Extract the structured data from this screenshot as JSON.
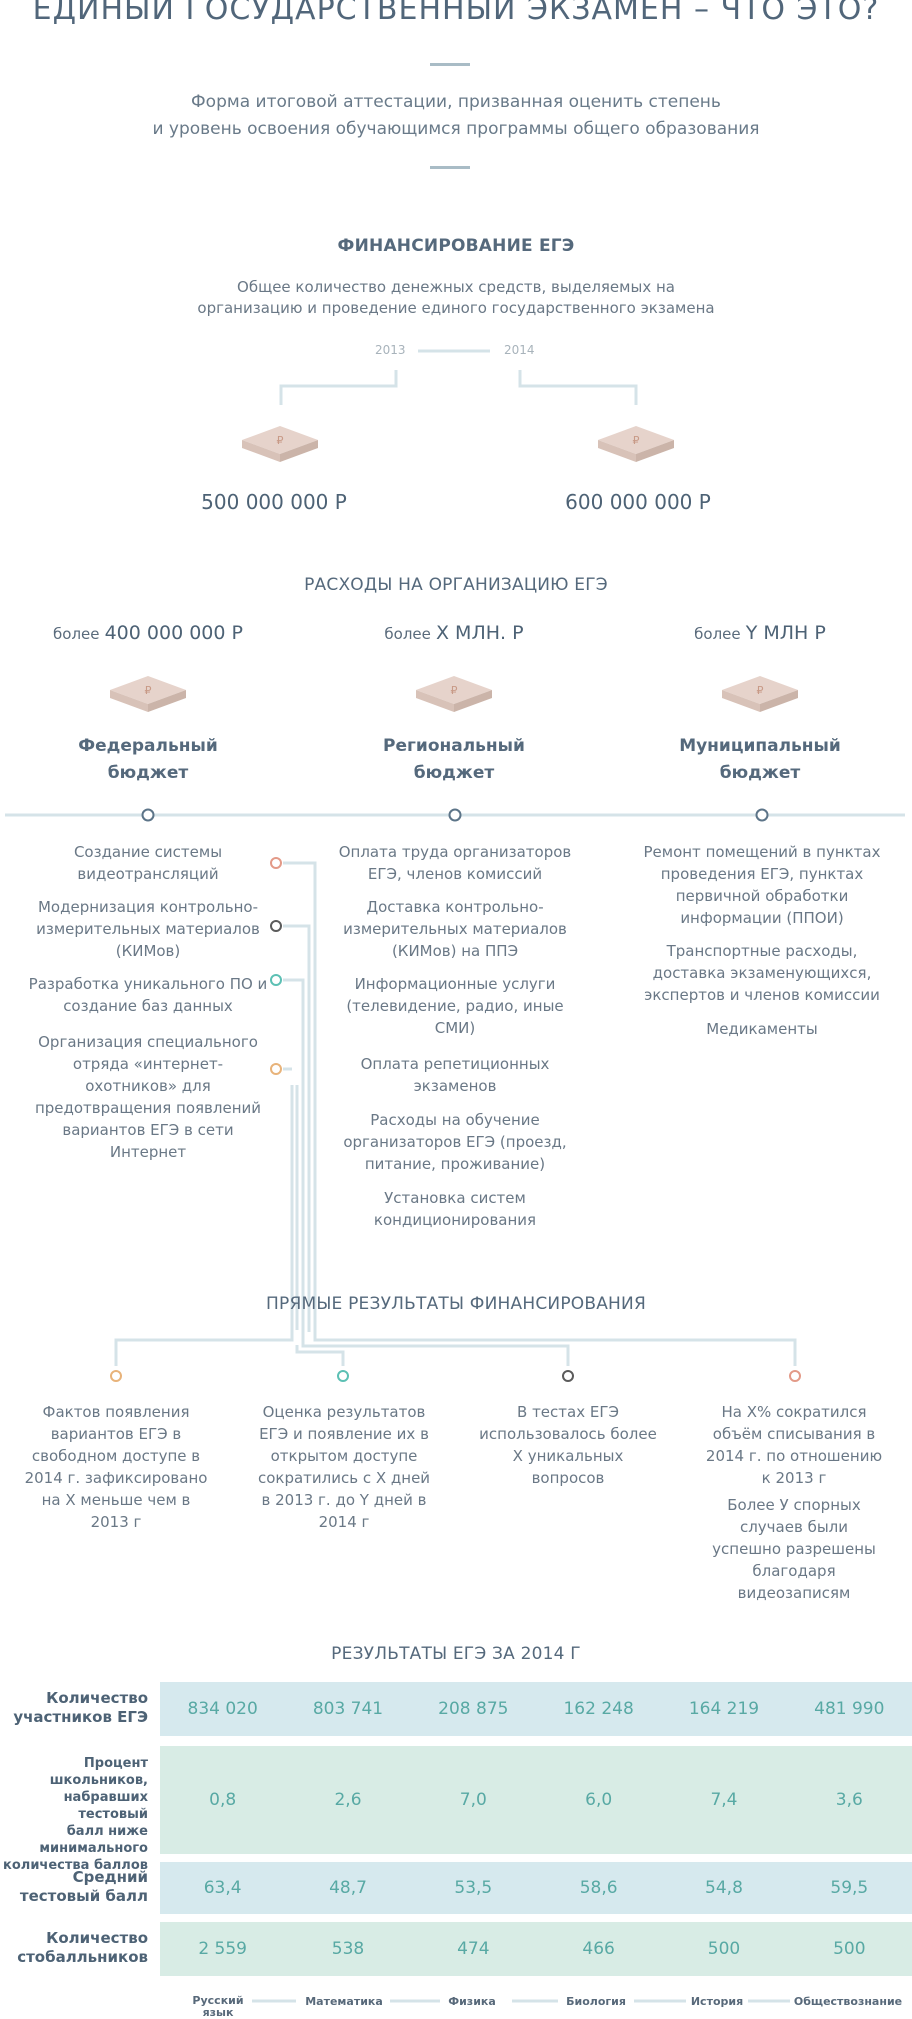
{
  "header": {
    "title": "ЕДИНЫЙ ГОСУДАРСТВЕННЫЙ ЭКЗАМЕН – ЧТО ЭТО?",
    "lead_line1": "Форма итоговой аттестации, призванная оценить степень",
    "lead_line2": "и уровень освоения обучающимся программы общего образования"
  },
  "financing": {
    "title": "ФИНАНСИРОВАНИЕ ЕГЭ",
    "desc_line1": "Общее количество денежных средств, выделяемых на",
    "desc_line2": "организацию и проведение единого государственного экзамена",
    "year1": "2013",
    "year2": "2014",
    "amount1": "500 000 000 Р",
    "amount2": "600 000 000 Р"
  },
  "expenses": {
    "title": "РАСХОДЫ НА ОРГАНИЗАЦИЮ ЕГЭ",
    "columns": [
      {
        "prefix": "более",
        "amount": "400 000 000 Р",
        "name_line1": "Федеральный",
        "name_line2": "бюджет",
        "items": [
          "Создание системы видеотрансляций",
          "Модернизация контрольно-измерительных материалов (КИМов)",
          "Разработка уникального ПО и создание баз данных",
          "Организация специального отряда «интернет-охотников» для предотвращения появлений вариантов ЕГЭ в сети Интернет"
        ]
      },
      {
        "prefix": "более",
        "amount": "X МЛН. Р",
        "name_line1": "Региональный",
        "name_line2": "бюджет",
        "items": [
          "Оплата труда организаторов ЕГЭ, членов комиссий",
          "Доставка контрольно-измерительных материалов (КИМов) на ППЭ",
          "Информационные услуги (телевидение, радио, иные СМИ)",
          "Оплата репетиционных экзаменов",
          "Расходы на обучение организаторов ЕГЭ (проезд, питание, проживание)",
          "Установка систем кондиционирования"
        ]
      },
      {
        "prefix": "более",
        "amount": "Y МЛН Р",
        "name_line1": "Муниципальный",
        "name_line2": "бюджет",
        "items": [
          "Ремонт помещений в пунктах проведения ЕГЭ, пунктах первичной обработки информации (ППОИ)",
          "Транспортные расходы, доставка экзаменующихся, экспертов и членов комиссии",
          "Медикаменты"
        ]
      }
    ]
  },
  "results": {
    "title": "ПРЯМЫЕ РЕЗУЛЬТАТЫ ФИНАНСИРОВАНИЯ",
    "items": [
      "Фактов появления вариантов ЕГЭ в свободном доступе в 2014 г. зафиксировано на X меньше чем в 2013 г",
      "Оценка результатов ЕГЭ и появление их в открытом доступе сократились с X дней в 2013 г. до Y дней в 2014 г",
      "В тестах ЕГЭ использовалось более X уникальных вопросов",
      "На X% сократился объём списывания в 2014 г. по отношению к 2013 г",
      "Более У спорных случаев были успешно разрешены благодаря видеозаписям"
    ]
  },
  "exam": {
    "title": "РЕЗУЛЬТАТЫ ЕГЭ ЗА 2014 Г",
    "rows": [
      {
        "label_lines": [
          "Количество",
          "участников ЕГЭ"
        ],
        "values": [
          "834 020",
          "803 741",
          "208 875",
          "162 248",
          "164 219",
          "481 990"
        ]
      },
      {
        "label_lines": [
          "Процент школьников,",
          "набравших тестовый",
          "балл ниже",
          "минимального",
          "количества баллов"
        ],
        "values": [
          "0,8",
          "2,6",
          "7,0",
          "6,0",
          "7,4",
          "3,6"
        ]
      },
      {
        "label_lines": [
          "Средний",
          "тестовый балл"
        ],
        "values": [
          "63,4",
          "48,7",
          "53,5",
          "58,6",
          "54,8",
          "59,5"
        ]
      },
      {
        "label_lines": [
          "Количество",
          "стобалльников"
        ],
        "values": [
          "2 559",
          "538",
          "474",
          "466",
          "500",
          "500"
        ]
      }
    ],
    "subjects": [
      "Русский язык",
      "Математика",
      "Физика",
      "Биология",
      "История",
      "Обществознание"
    ]
  },
  "colors": {
    "blue_row": "#d6e9ee",
    "green_row": "#d8ece5",
    "value": "#58a9a4",
    "line": "#d5e3e8",
    "dot_red": "#e39a88",
    "dot_gray": "#5b5b5b",
    "dot_teal": "#5cc0b4",
    "dot_orange": "#e8b37a",
    "dot_blue": "#5c7488"
  },
  "icons": [
    "ruble-banknote-stack-icon"
  ]
}
